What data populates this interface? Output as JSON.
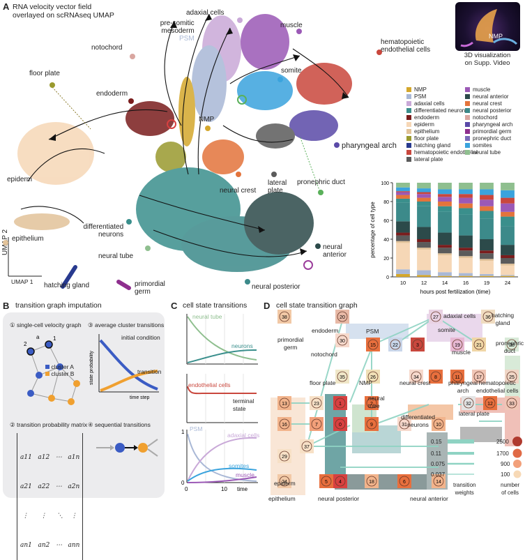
{
  "panel_a": {
    "letter": "A",
    "title_line1": "RNA velocity vector field",
    "title_line2": "overlayed on scRNAseq UMAP",
    "inset_node_label": "NMP",
    "inset_caption_line1": "3D visualization",
    "inset_caption_line2": "on Supp. Video",
    "umap_x_label": "UMAP 1",
    "umap_y_label": "UMAP 2",
    "labels": {
      "adaxial": "adaxial cells",
      "muscle": "muscle",
      "psm_1": "pre-somitic",
      "psm_2": "mesoderm",
      "psm_3": "PSM",
      "notochord": "notochord",
      "hemato_1": "hematopoietic",
      "hemato_2": "endothelial cells",
      "floor_plate": "floor plate",
      "somite": "somite",
      "endoderm": "endoderm",
      "nmp": "NMP",
      "pharyngeal_arch": "pharyngeal arch",
      "epiderm": "epiderm",
      "neural_crest": "neural crest",
      "lateral_1": "lateral",
      "lateral_2": "plate",
      "pronephric_duct": "pronephric duct",
      "epithelium": "epithelium",
      "diff_neurons_1": "differentiated",
      "diff_neurons_2": "neurons",
      "neural_tube": "neural tube",
      "neural_anterior_1": "neural",
      "neural_anterior_2": "anterior",
      "hatching_gland": "hatching gland",
      "primordial_1": "primordial",
      "primordial_2": "germ",
      "neural_posterior": "neural posterior"
    },
    "legend_col1": [
      {
        "name": "NMP",
        "color": "#d4a72c"
      },
      {
        "name": "PSM",
        "color": "#a9b8d6"
      },
      {
        "name": "adaxial cells",
        "color": "#c9a9d8"
      },
      {
        "name": "differentiated neurons",
        "color": "#3a8f8c"
      },
      {
        "name": "endoderm",
        "color": "#7a1d1d"
      },
      {
        "name": "epiderm",
        "color": "#f6d7b6"
      },
      {
        "name": "epithelium",
        "color": "#e2c39a"
      },
      {
        "name": "floor plate",
        "color": "#9a9a2e"
      },
      {
        "name": "hatching gland",
        "color": "#283a8f"
      },
      {
        "name": "hematopoietic endothelial",
        "color": "#c9473d"
      },
      {
        "name": "lateral plate",
        "color": "#5b5b5b"
      }
    ],
    "legend_col2": [
      {
        "name": "muscle",
        "color": "#9b59b6"
      },
      {
        "name": "neural anterior",
        "color": "#2c4a4a"
      },
      {
        "name": "neural crest",
        "color": "#e3743c"
      },
      {
        "name": "neural posterior",
        "color": "#3c8a8a"
      },
      {
        "name": "notochord",
        "color": "#d9a6a0"
      },
      {
        "name": "pharyngeal arch",
        "color": "#5a4aa8"
      },
      {
        "name": "primordial germ",
        "color": "#8e2f8e"
      },
      {
        "name": "pronephric duct",
        "color": "#7a6bb8"
      },
      {
        "name": "somites",
        "color": "#3aa3dd"
      },
      {
        "name": "neural tube",
        "color": "#8fbf8f"
      }
    ]
  },
  "chart_data": {
    "type": "bar",
    "stacked": true,
    "categories": [
      "10",
      "12",
      "14",
      "16",
      "19",
      "24"
    ],
    "xlabel": "hours post fertilization (time)",
    "ylabel": "percentage of cell type",
    "ylim": [
      0,
      100
    ],
    "yticks": [
      "0",
      "20",
      "40",
      "60",
      "80",
      "100"
    ],
    "series": [
      {
        "name": "NMP",
        "color": "#d4a72c",
        "values": [
          3,
          2,
          1,
          1,
          1,
          1
        ]
      },
      {
        "name": "PSM",
        "color": "#a9b8d6",
        "values": [
          5,
          5,
          4,
          3,
          2,
          1
        ]
      },
      {
        "name": "epiderm",
        "color": "#f6d7b6",
        "values": [
          28,
          22,
          18,
          16,
          14,
          10
        ]
      },
      {
        "name": "epithelium",
        "color": "#e2c39a",
        "values": [
          2,
          2,
          2,
          2,
          2,
          2
        ]
      },
      {
        "name": "lateral plate",
        "color": "#5b5b5b",
        "values": [
          6,
          6,
          6,
          6,
          6,
          6
        ]
      },
      {
        "name": "endoderm",
        "color": "#7a1d1d",
        "values": [
          3,
          3,
          3,
          3,
          3,
          3
        ]
      },
      {
        "name": "neural anterior",
        "color": "#2c4a4a",
        "values": [
          12,
          13,
          13,
          13,
          12,
          11
        ]
      },
      {
        "name": "neural posterior",
        "color": "#3c8a8a",
        "values": [
          20,
          22,
          22,
          22,
          22,
          20
        ]
      },
      {
        "name": "differentiated neurons",
        "color": "#3a8f8c",
        "values": [
          4,
          5,
          6,
          7,
          8,
          10
        ]
      },
      {
        "name": "neural crest",
        "color": "#e3743c",
        "values": [
          4,
          4,
          5,
          5,
          5,
          5
        ]
      },
      {
        "name": "muscle",
        "color": "#9b59b6",
        "values": [
          3,
          4,
          5,
          6,
          7,
          9
        ]
      },
      {
        "name": "hematopoietic endothelial",
        "color": "#c9473d",
        "values": [
          1,
          2,
          3,
          4,
          5,
          6
        ]
      },
      {
        "name": "somites",
        "color": "#3aa3dd",
        "values": [
          4,
          4,
          5,
          5,
          6,
          8
        ]
      },
      {
        "name": "neural tube",
        "color": "#8fbf8f",
        "values": [
          5,
          6,
          7,
          7,
          7,
          8
        ]
      }
    ]
  },
  "panel_b": {
    "letter": "B",
    "title": "transition graph imputation",
    "step1": "single-cell velocity graph",
    "step2": "transition probability matrix",
    "step3": "average cluster transitions",
    "step4": "sequential transitions",
    "cluster_a": "cluster A",
    "cluster_b": "cluster B",
    "initial_condition": "initial condition",
    "transition": "transition",
    "y_axis": "state probability",
    "x_axis": "time step",
    "n1": "1",
    "n2": "2",
    "num1": "①",
    "num2": "②",
    "num3": "③",
    "num4": "④",
    "a12": "a",
    "matrix": [
      "a11   a12   ⋯   a1n",
      "a21   a22   ⋯   a2n",
      " ⋮      ⋮     ⋱    ⋮",
      "an1   an2   ⋯   ann"
    ]
  },
  "panel_c": {
    "letter": "C",
    "title": "cell state transitions",
    "neural_tube": "neural tube",
    "neurons": "neurons",
    "endothelial": "endothelial cells",
    "terminal_1": "terminal",
    "terminal_2": "state",
    "psm": "PSM",
    "adaxial": "adaxial cells",
    "somites": "somites",
    "muscle": "muscle",
    "y1": "1",
    "y0": "0",
    "x0": "0",
    "x10": "10",
    "xlabel": "time"
  },
  "panel_d": {
    "letter": "D",
    "title": "cell state transition graph",
    "labels": {
      "primordial_1": "primordial",
      "primordial_2": "germ",
      "endoderm": "endoderm",
      "notochord": "notochord",
      "floor_plate": "floor plate",
      "nmp": "NMP",
      "psm": "PSM",
      "adaxial": "adaxial cells",
      "somite": "somite",
      "muscle": "muscle",
      "hatching_1": "hatching",
      "hatching_2": "gland",
      "pronephric_1": "pronephric",
      "pronephric_2": "duct",
      "neural_crest": "neural crest",
      "pharyngeal_1": "pharyngeal",
      "pharyngeal_2": "arch",
      "hemato_1": "hematopoietic",
      "hemato_2": "endothelial cells",
      "lateral": "lateral plate",
      "neural_tube_1": "neural",
      "neural_tube_2": "tube",
      "diff_1": "differentiated",
      "diff_2": "neurons",
      "epiderm": "epiderm",
      "epithelium": "epithelium",
      "neural_posterior": "neural posterior",
      "neural_anterior": "neural anterior",
      "tw_title_1": "transition",
      "tw_title_2": "weights",
      "nc_title_1": "number",
      "nc_title_2": "of cells"
    },
    "weights": [
      "0.15",
      "0.11",
      "0.075",
      "0.037"
    ],
    "cell_counts": [
      "2500",
      "1700",
      "900",
      "100"
    ],
    "nodes": [
      {
        "id": "38",
        "color": "#f2c9a6"
      },
      {
        "id": "20",
        "color": "#e8b9a6"
      },
      {
        "id": "27",
        "color": "#e9d2e3"
      },
      {
        "id": "36",
        "color": "#f0dcc0"
      },
      {
        "id": "30",
        "color": "#f7d9cc"
      },
      {
        "id": "15",
        "color": "#e86f3d"
      },
      {
        "id": "22",
        "color": "#c9d6ea"
      },
      {
        "id": "3",
        "color": "#c9473d"
      },
      {
        "id": "19",
        "color": "#e8b9d4"
      },
      {
        "id": "21",
        "color": "#f0d6a6"
      },
      {
        "id": "28",
        "color": "#d8ead8"
      },
      {
        "id": "35",
        "color": "#f0e7c8"
      },
      {
        "id": "26",
        "color": "#f0e0b6"
      },
      {
        "id": "34",
        "color": "#f7d9cc"
      },
      {
        "id": "8",
        "color": "#e86f3d"
      },
      {
        "id": "11",
        "color": "#e86f3d"
      },
      {
        "id": "17",
        "color": "#f0c6b6"
      },
      {
        "id": "25",
        "color": "#f0d6c6"
      },
      {
        "id": "13",
        "color": "#f2b48c"
      },
      {
        "id": "23",
        "color": "#f7e0c6"
      },
      {
        "id": "1",
        "color": "#d84040"
      },
      {
        "id": "2",
        "color": "#e86f3d"
      },
      {
        "id": "32",
        "color": "#e4e4e4"
      },
      {
        "id": "12",
        "color": "#e86f3d"
      },
      {
        "id": "33",
        "color": "#f0c6b6"
      },
      {
        "id": "16",
        "color": "#f2b48c"
      },
      {
        "id": "7",
        "color": "#f2a07a"
      },
      {
        "id": "0",
        "color": "#d84040"
      },
      {
        "id": "9",
        "color": "#e86f3d"
      },
      {
        "id": "31",
        "color": "#f7d9cc"
      },
      {
        "id": "10",
        "color": "#f2b48c"
      },
      {
        "id": "29",
        "color": "#f7e0c6"
      },
      {
        "id": "37",
        "color": "#f7e0c6"
      },
      {
        "id": "24",
        "color": "#f2c9a6"
      },
      {
        "id": "5",
        "color": "#e86f3d"
      },
      {
        "id": "4",
        "color": "#d84040"
      },
      {
        "id": "18",
        "color": "#f2b48c"
      },
      {
        "id": "6",
        "color": "#e86f3d"
      },
      {
        "id": "14",
        "color": "#f2b48c"
      }
    ]
  }
}
